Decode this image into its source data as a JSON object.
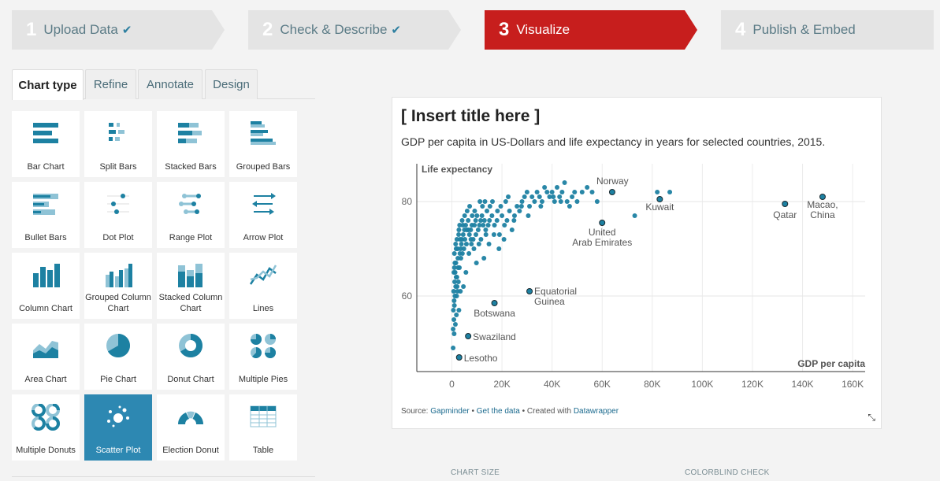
{
  "steps": [
    {
      "num": "1",
      "label": "Upload Data",
      "check": "✔",
      "active": false
    },
    {
      "num": "2",
      "label": "Check & Describe",
      "check": "✔",
      "active": false
    },
    {
      "num": "3",
      "label": "Visualize",
      "check": "",
      "active": true
    },
    {
      "num": "4",
      "label": "Publish & Embed",
      "check": "",
      "active": false
    }
  ],
  "colors": {
    "active_step": "#c71e1d",
    "inactive_step": "#e4e4e4",
    "accent": "#1d81a2",
    "selected_tile": "#2d88b2"
  },
  "tabs": [
    {
      "label": "Chart type",
      "active": true
    },
    {
      "label": "Refine",
      "active": false
    },
    {
      "label": "Annotate",
      "active": false
    },
    {
      "label": "Design",
      "active": false
    }
  ],
  "chart_types": [
    {
      "label": "Bar Chart",
      "icon": "bar-chart-icon"
    },
    {
      "label": "Split Bars",
      "icon": "split-bars-icon"
    },
    {
      "label": "Stacked Bars",
      "icon": "stacked-bars-icon"
    },
    {
      "label": "Grouped Bars",
      "icon": "grouped-bars-icon"
    },
    {
      "label": "Bullet Bars",
      "icon": "bullet-bars-icon"
    },
    {
      "label": "Dot Plot",
      "icon": "dot-plot-icon"
    },
    {
      "label": "Range Plot",
      "icon": "range-plot-icon"
    },
    {
      "label": "Arrow Plot",
      "icon": "arrow-plot-icon"
    },
    {
      "label": "Column Chart",
      "icon": "column-chart-icon"
    },
    {
      "label": "Grouped Column Chart",
      "icon": "grouped-column-chart-icon"
    },
    {
      "label": "Stacked Column Chart",
      "icon": "stacked-column-chart-icon"
    },
    {
      "label": "Lines",
      "icon": "lines-icon"
    },
    {
      "label": "Area Chart",
      "icon": "area-chart-icon"
    },
    {
      "label": "Pie Chart",
      "icon": "pie-chart-icon"
    },
    {
      "label": "Donut Chart",
      "icon": "donut-chart-icon"
    },
    {
      "label": "Multiple Pies",
      "icon": "multiple-pies-icon"
    },
    {
      "label": "Multiple Donuts",
      "icon": "multiple-donuts-icon"
    },
    {
      "label": "Scatter Plot",
      "icon": "scatter-plot-icon",
      "selected": true
    },
    {
      "label": "Election Donut",
      "icon": "election-donut-icon"
    },
    {
      "label": "Table",
      "icon": "table-icon"
    }
  ],
  "preview": {
    "title": "[ Insert title here ]",
    "description": "GDP per capita in US-Dollars and life expectancy in years for selected countries, 2015.",
    "source_prefix": "Source: ",
    "source_name": "Gapminder",
    "sep1": " • ",
    "get_data": "Get the data",
    "sep2": " • Created with ",
    "created_with": "Datawrapper"
  },
  "chart_data": {
    "type": "scatter",
    "xlabel": "GDP per capita",
    "ylabel": "Life expectancy",
    "xlim": [
      -14000,
      165000
    ],
    "ylim": [
      44,
      88
    ],
    "xticks": [
      0,
      20000,
      40000,
      60000,
      80000,
      100000,
      120000,
      140000,
      160000
    ],
    "xtick_labels": [
      "0",
      "20K",
      "40K",
      "60K",
      "80K",
      "100K",
      "120K",
      "140K",
      "160K"
    ],
    "yticks": [
      60,
      80
    ],
    "ytick_labels": [
      "60",
      "80"
    ],
    "grid": true,
    "highlighted": [
      {
        "label": "Norway",
        "x": 64000,
        "y": 82
      },
      {
        "label": "Kuwait",
        "x": 83000,
        "y": 80.5
      },
      {
        "label": "United Arab Emirates",
        "x": 60000,
        "y": 75.5
      },
      {
        "label": "Qatar",
        "x": 133000,
        "y": 79.5
      },
      {
        "label": "Macao, China",
        "x": 148000,
        "y": 81
      },
      {
        "label": "Equatorial Guinea",
        "x": 31000,
        "y": 61
      },
      {
        "label": "Botswana",
        "x": 17000,
        "y": 58.5
      },
      {
        "label": "Swaziland",
        "x": 6500,
        "y": 51.5
      },
      {
        "label": "Lesotho",
        "x": 2900,
        "y": 47
      }
    ],
    "points": [
      [
        1000,
        58
      ],
      [
        1200,
        60
      ],
      [
        1500,
        62
      ],
      [
        1800,
        56
      ],
      [
        2000,
        64
      ],
      [
        2200,
        61
      ],
      [
        2500,
        66
      ],
      [
        800,
        55
      ],
      [
        900,
        59
      ],
      [
        1100,
        63
      ],
      [
        1300,
        65
      ],
      [
        1600,
        67
      ],
      [
        1900,
        60
      ],
      [
        2100,
        62
      ],
      [
        2400,
        68
      ],
      [
        700,
        61
      ],
      [
        600,
        57
      ],
      [
        1400,
        54
      ],
      [
        1700,
        64
      ],
      [
        2600,
        63
      ],
      [
        3000,
        66
      ],
      [
        3200,
        69
      ],
      [
        3500,
        70
      ],
      [
        3800,
        71
      ],
      [
        4000,
        72
      ],
      [
        4200,
        69
      ],
      [
        4500,
        73
      ],
      [
        5000,
        74
      ],
      [
        5200,
        72
      ],
      [
        5500,
        75
      ],
      [
        6000,
        74
      ],
      [
        6500,
        76
      ],
      [
        7000,
        73
      ],
      [
        7500,
        74
      ],
      [
        8000,
        75
      ],
      [
        8500,
        72
      ],
      [
        9000,
        75
      ],
      [
        9500,
        76
      ],
      [
        10000,
        77
      ],
      [
        10500,
        74
      ],
      [
        11000,
        75
      ],
      [
        11500,
        76
      ],
      [
        12000,
        77
      ],
      [
        12500,
        75
      ],
      [
        13000,
        76
      ],
      [
        13500,
        74
      ],
      [
        14000,
        78
      ],
      [
        14500,
        75
      ],
      [
        15000,
        76
      ],
      [
        16000,
        77
      ],
      [
        17000,
        75
      ],
      [
        18000,
        76
      ],
      [
        19000,
        73
      ],
      [
        20000,
        77
      ],
      [
        21000,
        75
      ],
      [
        22000,
        76
      ],
      [
        23000,
        78
      ],
      [
        24000,
        74
      ],
      [
        25000,
        77
      ],
      [
        26000,
        79
      ],
      [
        27000,
        78
      ],
      [
        28000,
        80
      ],
      [
        29000,
        81
      ],
      [
        30000,
        82
      ],
      [
        31000,
        79
      ],
      [
        32000,
        81
      ],
      [
        33000,
        80
      ],
      [
        34000,
        82
      ],
      [
        35000,
        81
      ],
      [
        36000,
        80
      ],
      [
        37000,
        83
      ],
      [
        38000,
        82
      ],
      [
        39000,
        81
      ],
      [
        40000,
        82
      ],
      [
        41000,
        80
      ],
      [
        42000,
        83
      ],
      [
        43000,
        81
      ],
      [
        44000,
        82
      ],
      [
        45000,
        84
      ],
      [
        46000,
        80
      ],
      [
        47000,
        79
      ],
      [
        48000,
        81
      ],
      [
        49000,
        82
      ],
      [
        50000,
        80
      ],
      [
        52000,
        82
      ],
      [
        54000,
        83
      ],
      [
        56000,
        82
      ],
      [
        58000,
        80
      ],
      [
        73000,
        77
      ],
      [
        82000,
        82
      ],
      [
        87000,
        82
      ],
      [
        3300,
        72
      ],
      [
        3600,
        68
      ],
      [
        4800,
        70
      ],
      [
        5800,
        71
      ],
      [
        6800,
        69
      ],
      [
        7800,
        71
      ],
      [
        8800,
        70
      ],
      [
        9800,
        67
      ],
      [
        10800,
        71
      ],
      [
        2700,
        73
      ],
      [
        2300,
        70
      ],
      [
        1500,
        71
      ],
      [
        1000,
        66
      ],
      [
        3100,
        75
      ],
      [
        4100,
        76
      ],
      [
        5100,
        77
      ],
      [
        6100,
        78
      ],
      [
        7100,
        79
      ],
      [
        8100,
        77
      ],
      [
        9100,
        78
      ],
      [
        11200,
        80
      ],
      [
        12200,
        79
      ],
      [
        13200,
        80
      ],
      [
        15200,
        79
      ],
      [
        16200,
        80
      ],
      [
        18200,
        78
      ],
      [
        19500,
        79
      ],
      [
        21500,
        80
      ],
      [
        22500,
        81
      ],
      [
        3400,
        61
      ],
      [
        4600,
        62
      ],
      [
        2800,
        57
      ],
      [
        5600,
        65
      ],
      [
        12800,
        68
      ],
      [
        14800,
        71
      ],
      [
        16800,
        73
      ],
      [
        18800,
        70
      ],
      [
        20800,
        72
      ],
      [
        24800,
        76
      ],
      [
        27800,
        79
      ],
      [
        30500,
        77
      ],
      [
        35500,
        79
      ],
      [
        40500,
        81
      ],
      [
        43500,
        80
      ],
      [
        800,
        65
      ],
      [
        1200,
        67
      ],
      [
        500,
        49
      ],
      [
        500,
        53
      ],
      [
        900,
        52
      ],
      [
        2000,
        72
      ],
      [
        2800,
        74
      ],
      [
        4400,
        75
      ],
      [
        6600,
        74
      ],
      [
        7600,
        72
      ],
      [
        9600,
        73
      ],
      [
        11600,
        72
      ],
      [
        13600,
        73
      ],
      [
        1000,
        69
      ],
      [
        1700,
        70
      ]
    ]
  },
  "bottom": {
    "chart_size": "CHART SIZE",
    "colorblind": "COLORBLIND CHECK"
  }
}
